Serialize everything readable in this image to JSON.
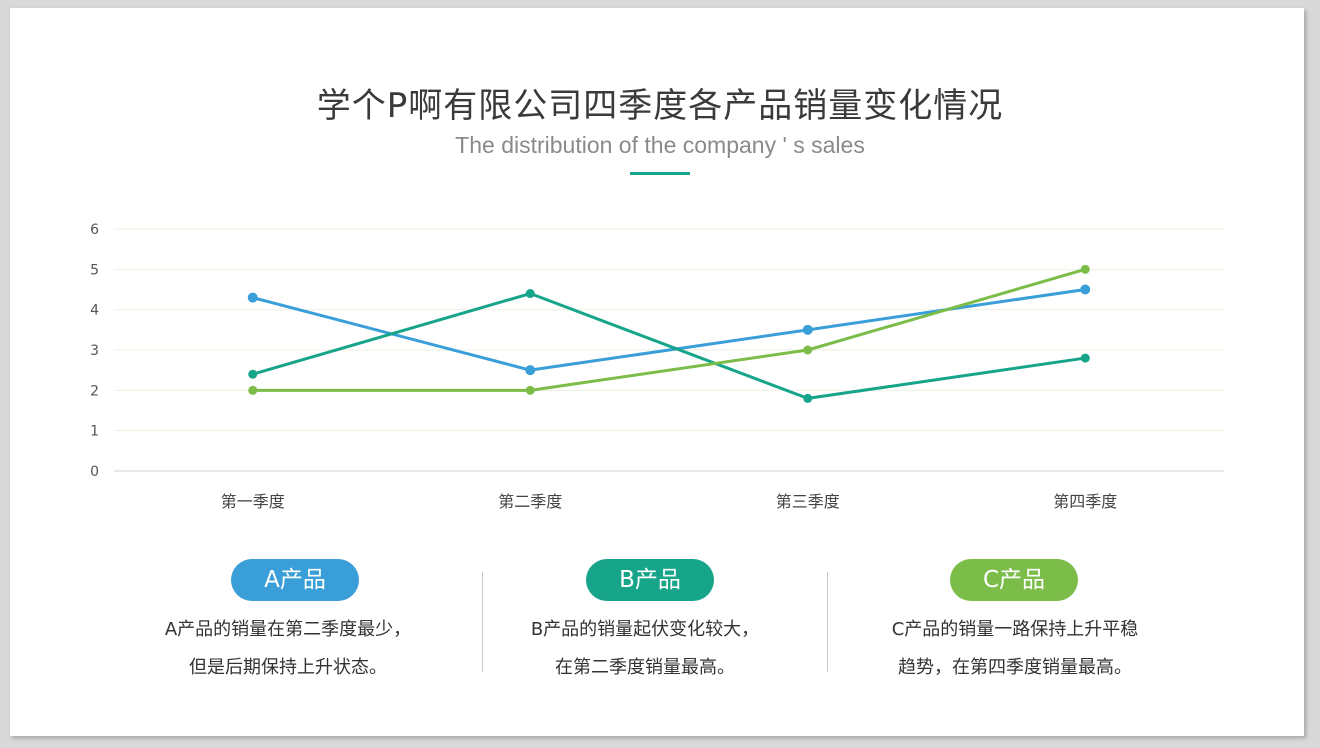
{
  "header": {
    "title": "学个P啊有限公司四季度各产品销量变化情况",
    "subtitle": "The distribution  of the company ' s sales"
  },
  "chart_data": {
    "type": "line",
    "categories": [
      "第一季度",
      "第二季度",
      "第三季度",
      "第四季度"
    ],
    "ylim": [
      0,
      6
    ],
    "yticks": [
      "0",
      "1",
      "2",
      "3",
      "4",
      "5",
      "6"
    ],
    "grid": true,
    "series": [
      {
        "name": "A产品",
        "color": "#3a9fd8",
        "values": [
          4.3,
          2.5,
          3.5,
          4.5
        ]
      },
      {
        "name": "B产品",
        "color": "#17a58a",
        "values": [
          2.4,
          4.4,
          1.8,
          2.8
        ]
      },
      {
        "name": "C产品",
        "color": "#7cbd4a",
        "values": [
          2.0,
          2.0,
          3.0,
          5.0
        ]
      }
    ]
  },
  "products": [
    {
      "label": "A产品",
      "color": "#3a9fd8",
      "line1": "A产品的销量在第二季度最少，",
      "line2": "但是后期保持上升状态。"
    },
    {
      "label": "B产品",
      "color": "#17a58a",
      "line1": "B产品的销量起伏变化较大，",
      "line2": "在第二季度销量最高。"
    },
    {
      "label": "C产品",
      "color": "#7cbd4a",
      "line1": "C产品的销量一路保持上升平稳",
      "line2": "趋势，在第四季度销量最高。"
    }
  ]
}
